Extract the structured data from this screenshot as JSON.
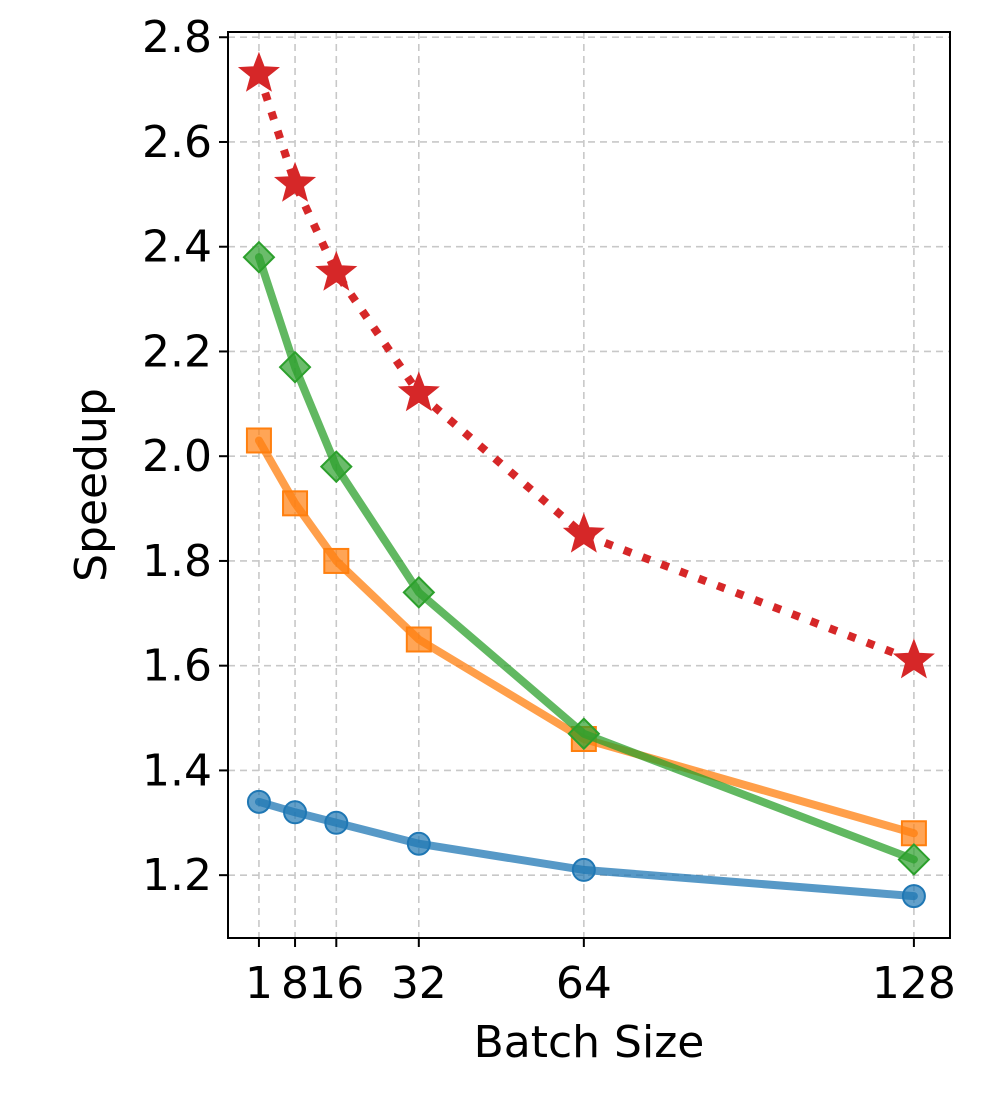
{
  "chart_data": {
    "type": "line",
    "title": "",
    "xlabel": "Batch Size",
    "ylabel": "Speedup",
    "x": [
      1,
      8,
      16,
      32,
      64,
      128
    ],
    "x_tick_labels": [
      "1",
      "8",
      "16",
      "32",
      "64",
      "128"
    ],
    "xlim": [
      -5,
      135
    ],
    "ylim": [
      1.08,
      2.81
    ],
    "y_ticks": [
      1.2,
      1.4,
      1.6,
      1.8,
      2.0,
      2.2,
      2.4,
      2.6,
      2.8
    ],
    "y_tick_labels": [
      "1.2",
      "1.4",
      "1.6",
      "1.8",
      "2.0",
      "2.2",
      "2.4",
      "2.6",
      "2.8"
    ],
    "grid": true,
    "legend": "none",
    "series": [
      {
        "name": "series-blue",
        "color": "#1f77b4",
        "marker": "circle",
        "line_style": "solid",
        "values": [
          1.34,
          1.32,
          1.3,
          1.26,
          1.21,
          1.16
        ]
      },
      {
        "name": "series-orange",
        "color": "#ff7f0e",
        "marker": "square",
        "line_style": "solid",
        "values": [
          2.03,
          1.91,
          1.8,
          1.65,
          1.46,
          1.28
        ]
      },
      {
        "name": "series-green",
        "color": "#2ca02c",
        "marker": "diamond",
        "line_style": "solid",
        "values": [
          2.38,
          2.17,
          1.98,
          1.74,
          1.47,
          1.23
        ]
      },
      {
        "name": "series-red",
        "color": "#d62728",
        "marker": "star",
        "line_style": "dotted",
        "values": [
          2.73,
          2.52,
          2.35,
          2.12,
          1.85,
          1.61
        ]
      }
    ]
  }
}
